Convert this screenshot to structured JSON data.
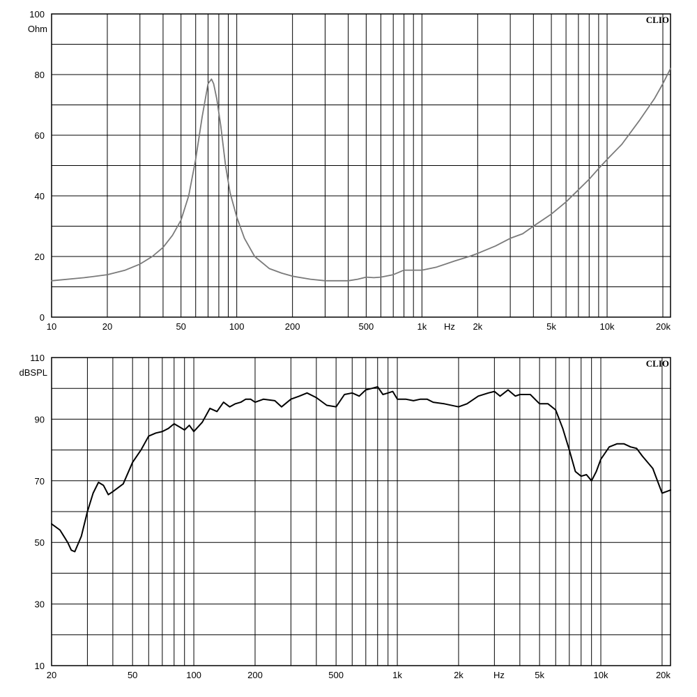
{
  "chart_data": [
    {
      "type": "line",
      "title": "",
      "brand": "CLIO",
      "xlabel": "Hz",
      "ylabel": "Ohm",
      "x_scale": "log",
      "xlim": [
        10,
        22000
      ],
      "ylim": [
        0,
        100
      ],
      "y_ticks": [
        0,
        20,
        40,
        60,
        80,
        100
      ],
      "y_minor_ticks": [
        10,
        30,
        50,
        70,
        90
      ],
      "x_ticks": [
        {
          "v": 10,
          "label": "10"
        },
        {
          "v": 20,
          "label": "20"
        },
        {
          "v": 50,
          "label": "50"
        },
        {
          "v": 100,
          "label": "100"
        },
        {
          "v": 200,
          "label": "200"
        },
        {
          "v": 500,
          "label": "500"
        },
        {
          "v": 1000,
          "label": "1k"
        },
        {
          "v": 2000,
          "label": "2k"
        },
        {
          "v": 5000,
          "label": "5k"
        },
        {
          "v": 10000,
          "label": "10k"
        },
        {
          "v": 20000,
          "label": "20k"
        }
      ],
      "x_grid": [
        10,
        20,
        30,
        40,
        50,
        60,
        70,
        80,
        90,
        100,
        200,
        300,
        400,
        500,
        600,
        700,
        800,
        900,
        1000,
        2000,
        3000,
        4000,
        5000,
        6000,
        7000,
        8000,
        9000,
        10000,
        20000
      ],
      "grid": true,
      "color": "#7a7a7a",
      "series": [
        {
          "x": [
            10,
            15,
            20,
            25,
            30,
            35,
            40,
            45,
            50,
            55,
            60,
            65,
            70,
            73,
            75,
            78,
            82,
            87,
            92,
            100,
            110,
            125,
            150,
            175,
            200,
            250,
            300,
            350,
            400,
            450,
            500,
            550,
            600,
            700,
            800,
            900,
            1000,
            1200,
            1500,
            1800,
            2000,
            2500,
            3000,
            3500,
            4000,
            5000,
            6000,
            7000,
            8000,
            9000,
            10000,
            12000,
            15000,
            18000,
            20000,
            22000
          ],
          "y": [
            12,
            13,
            14,
            15.5,
            17.5,
            20,
            23,
            27,
            32,
            40,
            52,
            66,
            77,
            78.5,
            77,
            72,
            63,
            50,
            41,
            33,
            26,
            20,
            16,
            14.5,
            13.5,
            12.5,
            12,
            12,
            12,
            12.5,
            13.2,
            13,
            13.2,
            14,
            15.5,
            15.5,
            15.5,
            16.5,
            18.5,
            20,
            21,
            23.5,
            26,
            27.5,
            30,
            34,
            38,
            42,
            45.5,
            49,
            52,
            57,
            65,
            72,
            77,
            82
          ]
        }
      ]
    },
    {
      "type": "line",
      "title": "",
      "brand": "CLIO",
      "xlabel": "Hz",
      "ylabel": "dBSPL",
      "x_scale": "log",
      "xlim": [
        20,
        22000
      ],
      "ylim": [
        10,
        110
      ],
      "y_ticks": [
        10,
        30,
        50,
        70,
        90,
        110
      ],
      "y_minor_ticks": [
        20,
        40,
        60,
        80,
        100
      ],
      "x_ticks": [
        {
          "v": 20,
          "label": "20"
        },
        {
          "v": 50,
          "label": "50"
        },
        {
          "v": 100,
          "label": "100"
        },
        {
          "v": 200,
          "label": "200"
        },
        {
          "v": 500,
          "label": "500"
        },
        {
          "v": 1000,
          "label": "1k"
        },
        {
          "v": 2000,
          "label": "2k"
        },
        {
          "v": 5000,
          "label": "5k"
        },
        {
          "v": 10000,
          "label": "10k"
        },
        {
          "v": 20000,
          "label": "20k"
        }
      ],
      "x_grid": [
        20,
        30,
        40,
        50,
        60,
        70,
        80,
        90,
        100,
        200,
        300,
        400,
        500,
        600,
        700,
        800,
        900,
        1000,
        2000,
        3000,
        4000,
        5000,
        6000,
        7000,
        8000,
        9000,
        10000,
        20000
      ],
      "grid": true,
      "color": "#000000",
      "series": [
        {
          "x": [
            20,
            22,
            24,
            25,
            26,
            28,
            30,
            32,
            34,
            36,
            38,
            40,
            45,
            50,
            55,
            60,
            65,
            70,
            75,
            80,
            85,
            90,
            95,
            100,
            110,
            120,
            130,
            140,
            150,
            160,
            170,
            180,
            190,
            200,
            220,
            250,
            270,
            300,
            330,
            360,
            400,
            450,
            500,
            550,
            600,
            650,
            700,
            750,
            800,
            850,
            900,
            950,
            1000,
            1100,
            1200,
            1300,
            1400,
            1500,
            1700,
            2000,
            2200,
            2500,
            2800,
            3000,
            3200,
            3500,
            3800,
            4000,
            4500,
            5000,
            5500,
            6000,
            6500,
            7000,
            7500,
            8000,
            8500,
            9000,
            9500,
            10000,
            11000,
            12000,
            13000,
            14000,
            15000,
            16000,
            18000,
            20000,
            21000,
            22000
          ],
          "y": [
            56,
            54,
            50,
            47.5,
            47,
            52,
            60,
            66,
            69.5,
            68.5,
            65.5,
            66.5,
            69,
            76,
            80,
            84.5,
            85.5,
            86,
            87,
            88.5,
            87.5,
            86.5,
            88,
            86,
            89,
            93.5,
            92.5,
            95.5,
            94,
            95,
            95.5,
            96.5,
            96.5,
            95.5,
            96.5,
            96,
            94,
            96.5,
            97.5,
            98.5,
            97,
            94.5,
            94,
            98,
            98.5,
            97.5,
            99.5,
            100,
            100.5,
            98,
            98.5,
            99,
            96.5,
            96.5,
            96,
            96.5,
            96.5,
            95.5,
            95,
            94,
            95,
            97.5,
            98.5,
            99,
            97.5,
            99.5,
            97.5,
            98,
            98,
            95,
            95,
            93,
            87,
            80,
            73,
            71.5,
            72,
            70,
            73,
            77,
            81,
            82,
            82,
            81,
            80.5,
            78,
            74,
            66,
            66.5,
            67
          ]
        }
      ]
    }
  ]
}
